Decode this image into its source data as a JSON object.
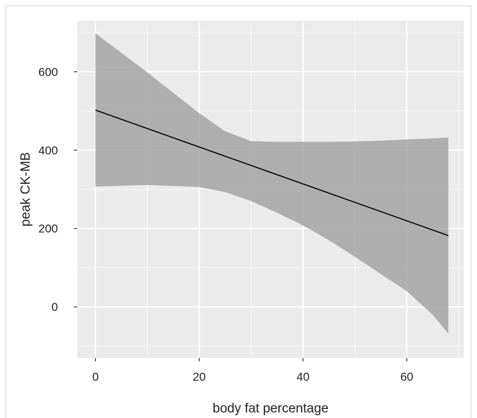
{
  "chart_data": {
    "type": "line",
    "title": "",
    "xlabel": "body fat percentage",
    "ylabel": "peak CK-MB",
    "xlim": [
      -3.5,
      71
    ],
    "ylim": [
      -130,
      730
    ],
    "x_ticks": [
      0,
      20,
      40,
      60
    ],
    "y_ticks": [
      0,
      200,
      400,
      600
    ],
    "x_tick_labels": [
      "0",
      "20",
      "40",
      "60"
    ],
    "y_tick_labels": [
      "0",
      "200",
      "400",
      "600"
    ],
    "grid": true,
    "legend": "none",
    "series": [
      {
        "x": [
          0,
          68
        ],
        "y": [
          502,
          182
        ]
      }
    ],
    "confidence_band": {
      "x": [
        0,
        10,
        20,
        25,
        30,
        35,
        40,
        45,
        50,
        55,
        60,
        65,
        68
      ],
      "upper": [
        698,
        598,
        494,
        448,
        423,
        421,
        421,
        421,
        422,
        424,
        427,
        430,
        432
      ],
      "lower": [
        307,
        311,
        306,
        293,
        270,
        240,
        208,
        170,
        128,
        84,
        40,
        -20,
        -68
      ]
    },
    "colors": {
      "panel_background": "#ebebeb",
      "grid_major": "#ffffff",
      "band_fill": "#999999",
      "line": "#000000"
    }
  }
}
